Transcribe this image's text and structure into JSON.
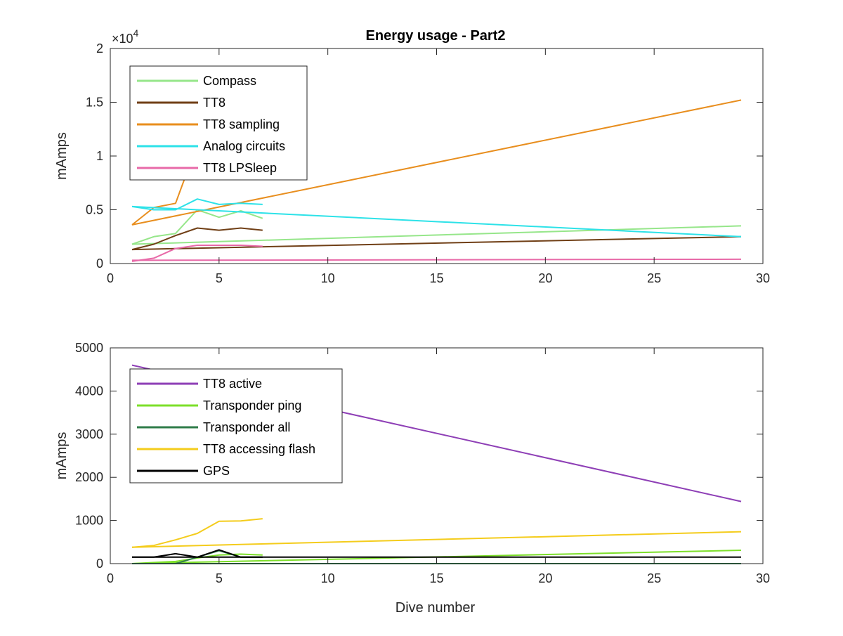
{
  "figure": {
    "title": "Energy usage - Part2"
  },
  "chart_data": [
    {
      "type": "line",
      "title": "Energy usage - Part2",
      "xlabel": "",
      "ylabel": "mAmps",
      "xlim": [
        0,
        30
      ],
      "ylim": [
        0,
        20000
      ],
      "y_exponent": "×10",
      "y_exponent_power": "4",
      "x_ticks": [
        0,
        5,
        10,
        15,
        20,
        25,
        30
      ],
      "x_tick_labels": [
        "0",
        "5",
        "10",
        "15",
        "20",
        "25",
        "30"
      ],
      "y_ticks": [
        0,
        5000,
        10000,
        15000,
        20000
      ],
      "y_tick_labels": [
        "0",
        "0.5",
        "1",
        "1.5",
        "2"
      ],
      "grid": false,
      "legend_position": "top-left",
      "legend": [
        "Compass",
        "TT8",
        "TT8 sampling",
        "Analog circuits",
        "TT8 LPSleep"
      ],
      "series": [
        {
          "name": "Compass",
          "color": "#96e68a",
          "segments": [
            [
              [
                1,
                1800
              ],
              [
                2,
                2500
              ],
              [
                3,
                2800
              ],
              [
                4,
                5000
              ],
              [
                5,
                4300
              ],
              [
                6,
                4900
              ],
              [
                7,
                4200
              ]
            ],
            [
              [
                1,
                1800
              ],
              [
                29,
                3500
              ]
            ]
          ]
        },
        {
          "name": "TT8",
          "color": "#703f16",
          "segments": [
            [
              [
                1,
                1300
              ],
              [
                2,
                1800
              ],
              [
                3,
                2600
              ],
              [
                4,
                3300
              ],
              [
                5,
                3100
              ],
              [
                6,
                3300
              ],
              [
                7,
                3100
              ]
            ],
            [
              [
                1,
                1300
              ],
              [
                29,
                2500
              ]
            ]
          ]
        },
        {
          "name": "TT8 sampling",
          "color": "#e88e1e",
          "segments": [
            [
              [
                1,
                3600
              ],
              [
                2,
                5200
              ],
              [
                3,
                5600
              ],
              [
                3.4,
                7800
              ]
            ],
            [
              [
                1,
                3600
              ],
              [
                29,
                15200
              ]
            ]
          ]
        },
        {
          "name": "Analog circuits",
          "color": "#2de2e8",
          "segments": [
            [
              [
                1,
                5300
              ],
              [
                2,
                5000
              ],
              [
                3,
                5000
              ],
              [
                4,
                6000
              ],
              [
                5,
                5500
              ],
              [
                6,
                5600
              ],
              [
                7,
                5500
              ]
            ],
            [
              [
                1,
                5300
              ],
              [
                29,
                2500
              ]
            ]
          ]
        },
        {
          "name": "TT8 LPSleep",
          "color": "#e86aa8",
          "segments": [
            [
              [
                1,
                200
              ],
              [
                2,
                500
              ],
              [
                3,
                1400
              ],
              [
                4,
                1700
              ],
              [
                5,
                1700
              ],
              [
                6,
                1700
              ],
              [
                7,
                1600
              ]
            ],
            [
              [
                1,
                300
              ],
              [
                29,
                400
              ]
            ]
          ]
        }
      ]
    },
    {
      "type": "line",
      "title": "",
      "xlabel": "Dive number",
      "ylabel": "mAmps",
      "xlim": [
        0,
        30
      ],
      "ylim": [
        0,
        5000
      ],
      "x_ticks": [
        0,
        5,
        10,
        15,
        20,
        25,
        30
      ],
      "x_tick_labels": [
        "0",
        "5",
        "10",
        "15",
        "20",
        "25",
        "30"
      ],
      "y_ticks": [
        0,
        1000,
        2000,
        3000,
        4000,
        5000
      ],
      "y_tick_labels": [
        "0",
        "1000",
        "2000",
        "3000",
        "4000",
        "5000"
      ],
      "grid": false,
      "legend_position": "top-left",
      "legend": [
        "TT8 active",
        "Transponder ping",
        "Transponder all",
        "TT8 accessing flash",
        "GPS"
      ],
      "series": [
        {
          "name": "TT8 active",
          "color": "#8e3fb6",
          "segments": [
            [
              [
                1,
                4600
              ],
              [
                29,
                1440
              ]
            ]
          ]
        },
        {
          "name": "Transponder ping",
          "color": "#7ddf2a",
          "segments": [
            [
              [
                1,
                0
              ],
              [
                3,
                50
              ],
              [
                4,
                130
              ],
              [
                5,
                200
              ],
              [
                6,
                220
              ],
              [
                7,
                200
              ]
            ],
            [
              [
                1,
                0
              ],
              [
                29,
                310
              ]
            ]
          ]
        },
        {
          "name": "Transponder all",
          "color": "#2f7c4a",
          "segments": [
            [
              [
                1,
                0
              ],
              [
                2,
                0
              ],
              [
                3,
                0
              ],
              [
                4,
                150
              ],
              [
                5,
                300
              ],
              [
                6,
                150
              ],
              [
                7,
                150
              ]
            ],
            [
              [
                1,
                0
              ],
              [
                29,
                0
              ]
            ]
          ]
        },
        {
          "name": "TT8 accessing flash",
          "color": "#f4cc1c",
          "segments": [
            [
              [
                1,
                380
              ],
              [
                2,
                420
              ],
              [
                3,
                550
              ],
              [
                4,
                700
              ],
              [
                5,
                980
              ],
              [
                6,
                990
              ],
              [
                7,
                1040
              ]
            ],
            [
              [
                1,
                380
              ],
              [
                29,
                740
              ]
            ]
          ]
        },
        {
          "name": "GPS",
          "color": "#000000",
          "segments": [
            [
              [
                1,
                150
              ],
              [
                2,
                150
              ],
              [
                3,
                230
              ],
              [
                4,
                150
              ],
              [
                5,
                320
              ],
              [
                6,
                150
              ],
              [
                7,
                150
              ]
            ],
            [
              [
                1,
                150
              ],
              [
                29,
                150
              ]
            ]
          ]
        }
      ]
    }
  ]
}
